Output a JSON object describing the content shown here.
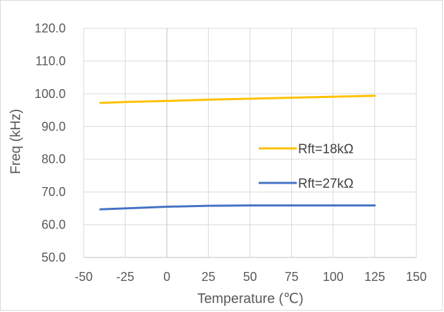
{
  "chart_data": {
    "type": "line",
    "title": "",
    "xlabel": "Temperature (℃)",
    "ylabel": "Freq (kHz)",
    "xlim": [
      -50,
      150
    ],
    "ylim": [
      50,
      120
    ],
    "x_ticks": [
      "-50",
      "-25",
      "0",
      "25",
      "50",
      "75",
      "100",
      "125",
      "150"
    ],
    "y_ticks": [
      "50.0",
      "60.0",
      "70.0",
      "80.0",
      "90.0",
      "100.0",
      "110.0",
      "120.0"
    ],
    "grid": true,
    "legend_position": "right",
    "series": [
      {
        "name": "Rft=18kΩ",
        "color": "#FFC000",
        "x": [
          -40,
          -25,
          0,
          25,
          50,
          75,
          100,
          125
        ],
        "y": [
          97.2,
          97.5,
          97.8,
          98.2,
          98.5,
          98.8,
          99.1,
          99.4
        ]
      },
      {
        "name": "Rft=27kΩ",
        "color": "#4472C4",
        "x": [
          -40,
          -25,
          0,
          25,
          50,
          75,
          100,
          125
        ],
        "y": [
          64.7,
          65.0,
          65.5,
          65.8,
          65.9,
          65.9,
          65.9,
          65.9
        ]
      }
    ]
  }
}
